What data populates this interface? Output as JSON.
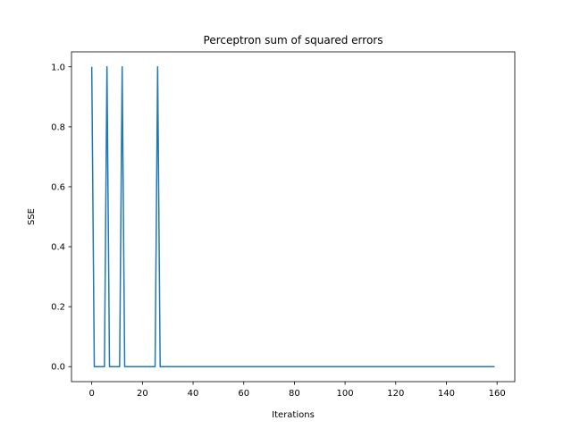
{
  "chart_data": {
    "type": "line",
    "title": "Perceptron sum of squared errors",
    "xlabel": "Iterations",
    "ylabel": "SSE",
    "xlim": [
      -8,
      167
    ],
    "ylim": [
      -0.05,
      1.05
    ],
    "xticks": [
      0,
      20,
      40,
      60,
      80,
      100,
      120,
      140,
      160
    ],
    "yticks": [
      0.0,
      0.2,
      0.4,
      0.6,
      0.8,
      1.0
    ],
    "xtick_labels": [
      "0",
      "20",
      "40",
      "60",
      "80",
      "100",
      "120",
      "140",
      "160"
    ],
    "ytick_labels": [
      "0.0",
      "0.2",
      "0.4",
      "0.6",
      "0.8",
      "1.0"
    ],
    "grid": false,
    "series": [
      {
        "color": "#1f77b4",
        "x": [
          0,
          1,
          5,
          6,
          7,
          11,
          12,
          13,
          25,
          26,
          27,
          159
        ],
        "y": [
          1,
          0,
          0,
          1,
          0,
          0,
          1,
          0,
          0,
          1,
          0,
          0
        ]
      }
    ]
  }
}
